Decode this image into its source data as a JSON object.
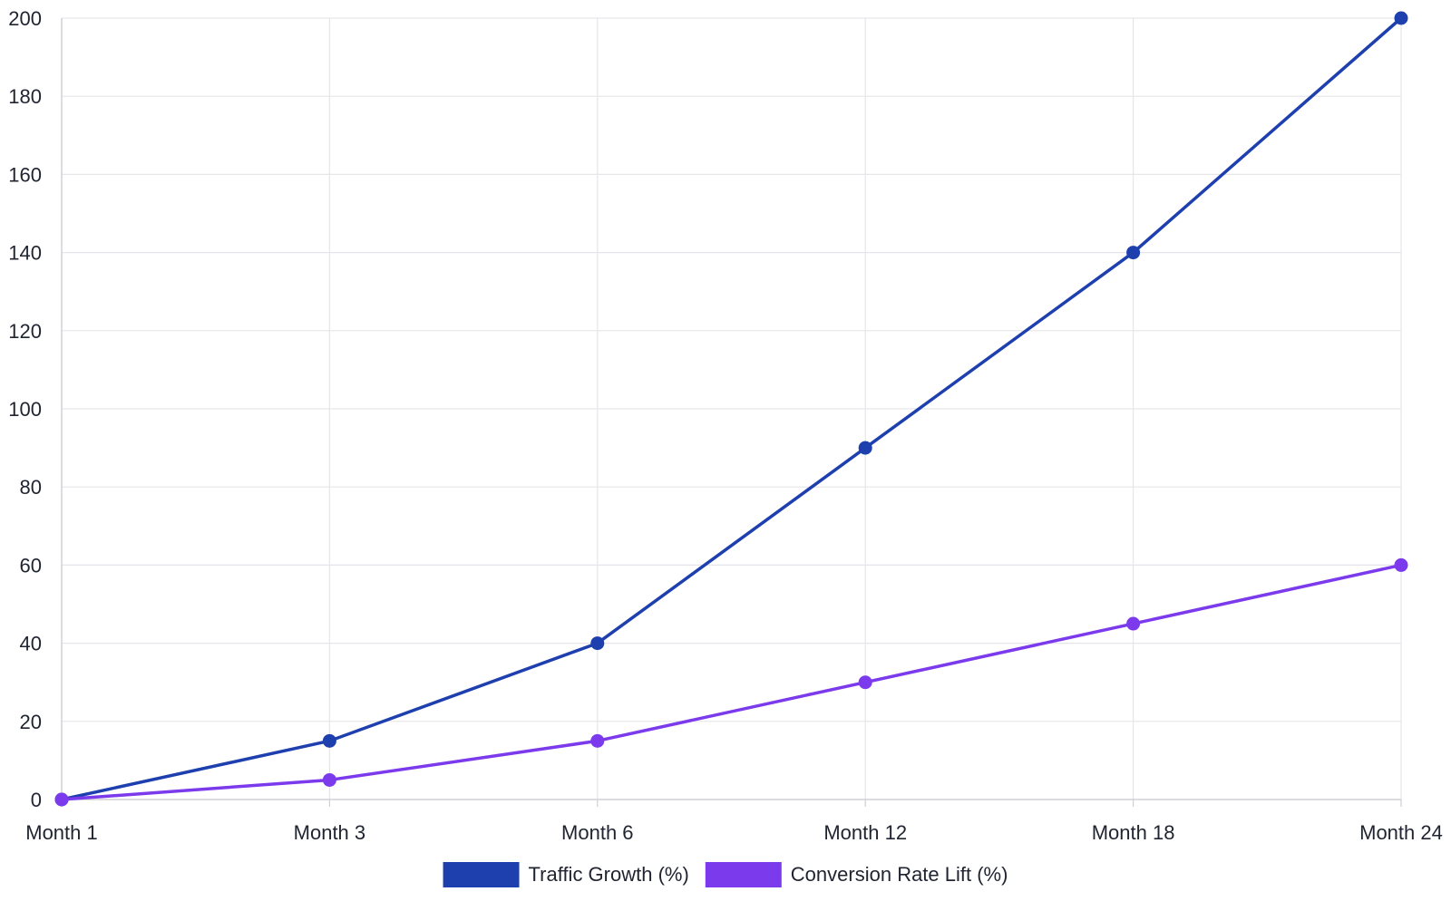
{
  "chart_data": {
    "type": "line",
    "title": "",
    "xlabel": "",
    "ylabel": "",
    "categories": [
      "Month 1",
      "Month 3",
      "Month 6",
      "Month 12",
      "Month 18",
      "Month 24"
    ],
    "y_ticks": [
      0,
      20,
      40,
      60,
      80,
      100,
      120,
      140,
      160,
      180,
      200
    ],
    "ylim": [
      0,
      200
    ],
    "grid": true,
    "legend_position": "bottom",
    "series": [
      {
        "name": "Traffic Growth (%)",
        "color": "#1e40af",
        "values": [
          0,
          15,
          40,
          90,
          140,
          200
        ]
      },
      {
        "name": "Conversion Rate Lift (%)",
        "color": "#7c3aed",
        "values": [
          0,
          5,
          15,
          30,
          45,
          60
        ]
      }
    ],
    "colors": {
      "grid": "#e6e6ea",
      "axis": "#cfcfd6",
      "text": "#1f2430"
    }
  }
}
